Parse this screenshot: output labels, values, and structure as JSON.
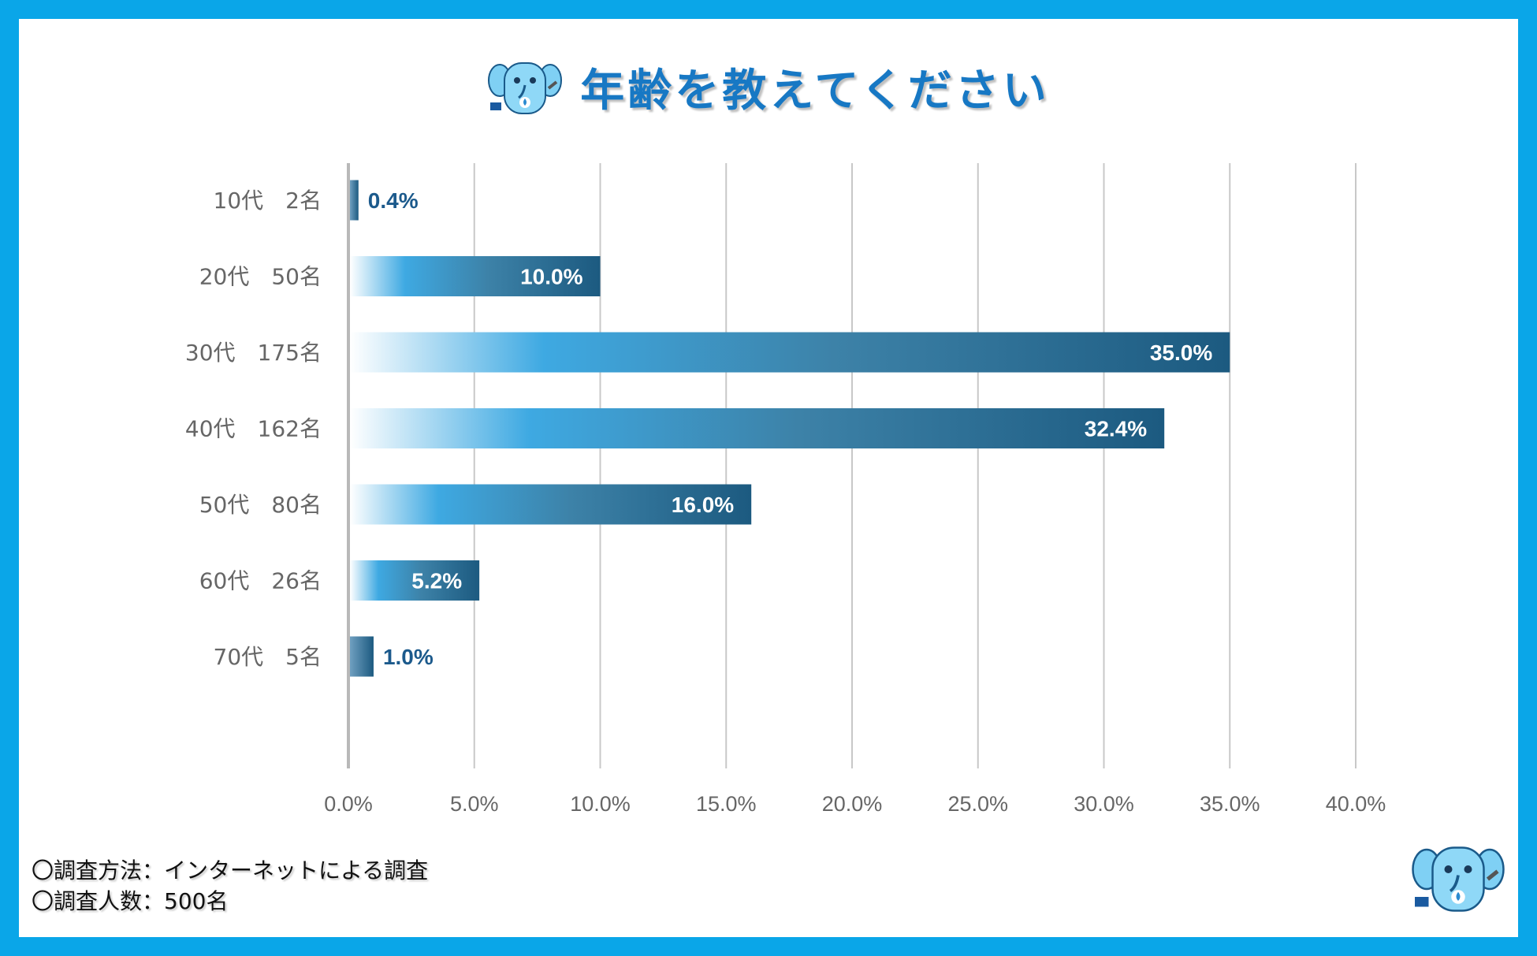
{
  "title": "年齢を教えてください",
  "footnotes": {
    "method": "〇調査方法：インターネットによる調査",
    "respondents": "〇調査人数：500名"
  },
  "colors": {
    "border": "#0aa6e8",
    "title": "#1778c4",
    "bar_dark": "#1c5a80",
    "bar_mid": "#3ea9e2",
    "bar_light": "#ffffff",
    "outside_label": "#1c5a8c",
    "grid": "#c8c8c8",
    "tick_text": "#666666"
  },
  "icons": {
    "title_mascot": "elephant-mascot-icon",
    "corner_mascot": "elephant-mascot-icon"
  },
  "chart_data": {
    "type": "bar",
    "orientation": "horizontal",
    "title": "年齢を教えてください",
    "categories": [
      "10代　2名",
      "20代　50名",
      "30代　175名",
      "40代　162名",
      "50代　80名",
      "60代　26名",
      "70代　5名"
    ],
    "values": [
      0.4,
      10.0,
      35.0,
      32.4,
      16.0,
      5.2,
      1.0
    ],
    "value_labels": [
      "0.4%",
      "10.0%",
      "35.0%",
      "32.4%",
      "16.0%",
      "5.2%",
      "1.0%"
    ],
    "xlim": [
      0,
      40
    ],
    "xticks": [
      0,
      5,
      10,
      15,
      20,
      25,
      30,
      35,
      40
    ],
    "xtick_labels": [
      "0.0%",
      "5.0%",
      "10.0%",
      "15.0%",
      "20.0%",
      "25.0%",
      "30.0%",
      "35.0%",
      "40.0%"
    ],
    "grid": true
  }
}
